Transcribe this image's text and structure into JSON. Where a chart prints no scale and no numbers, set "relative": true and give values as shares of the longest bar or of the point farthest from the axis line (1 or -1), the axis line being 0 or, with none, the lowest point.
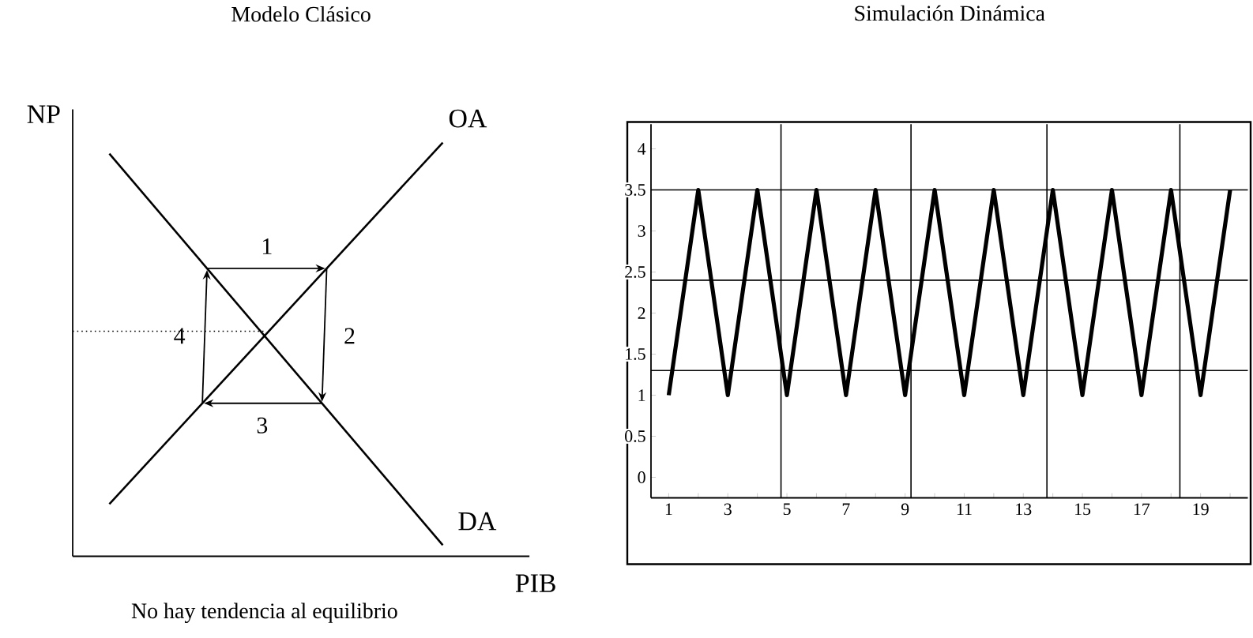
{
  "chart_data": [
    {
      "type": "line",
      "relative": true,
      "title": "Modelo Clásico",
      "xlabel": "PIB",
      "ylabel": "NP",
      "categories": [
        null,
        null
      ],
      "series": [
        {
          "name": "OA",
          "color": "#000000",
          "values": [
            0.126,
            1
          ]
        },
        {
          "name": "DA",
          "color": "#000000",
          "values": [
            0.973,
            0.027
          ]
        }
      ],
      "ref_lines": [
        {
          "axis": "y",
          "value": 0.544,
          "line_style": "dotted"
        }
      ],
      "annotations": [
        "1",
        "2",
        "3",
        "4",
        "No hay tendencia al equilibrio"
      ]
    },
    {
      "type": "line",
      "title": "Simulación Dinámica",
      "x": [
        1,
        2,
        3,
        4,
        5,
        6,
        7,
        8,
        9,
        10,
        11,
        12,
        13,
        14,
        15,
        16,
        17,
        18,
        19,
        20
      ],
      "series": [
        {
          "color": "#000000",
          "values": [
            1,
            3.5,
            1,
            3.5,
            1,
            3.5,
            1,
            3.5,
            1,
            3.5,
            1,
            3.5,
            1,
            3.5,
            1,
            3.5,
            1,
            3.5,
            1,
            3.5
          ]
        }
      ],
      "xlim": [
        0.4,
        20.6
      ],
      "ylim": [
        -0.25,
        4.3
      ],
      "xticks": [
        1,
        {
          "value": 2,
          "label": null
        },
        3,
        {
          "value": 4,
          "label": null
        },
        5,
        {
          "value": 6,
          "label": null
        },
        7,
        {
          "value": 8,
          "label": null
        },
        9,
        {
          "value": 10,
          "label": null
        },
        11,
        {
          "value": 12,
          "label": null
        },
        13,
        {
          "value": 14,
          "label": null
        },
        15,
        {
          "value": 16,
          "label": null
        },
        17,
        {
          "value": 18,
          "label": null
        },
        19,
        {
          "value": 20,
          "label": null
        }
      ],
      "yticks": [
        0,
        0.5,
        1,
        1.5,
        2,
        2.5,
        3,
        3.5,
        4
      ],
      "ref_lines": [
        {
          "axis": "y",
          "value": 1.3
        },
        {
          "axis": "y",
          "value": 2.4
        },
        {
          "axis": "y",
          "value": 3.5
        },
        {
          "axis": "x",
          "value": 4.8
        },
        {
          "axis": "x",
          "value": 9.2
        },
        {
          "axis": "x",
          "value": 13.8
        },
        {
          "axis": "x",
          "value": 18.3
        }
      ]
    }
  ]
}
